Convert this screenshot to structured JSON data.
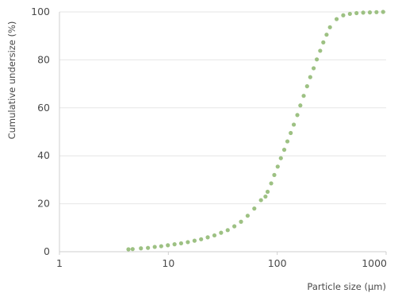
{
  "chart_data": {
    "type": "scatter",
    "title": "",
    "xlabel": "Particle size (μm)",
    "ylabel": "Cumulative undersize (%)",
    "x_scale": "log",
    "xlim": [
      1,
      1000
    ],
    "ylim": [
      0,
      100
    ],
    "x_ticks": [
      1,
      10,
      100,
      1000
    ],
    "x_tick_labels": [
      "1",
      "10",
      "100",
      "1000"
    ],
    "y_ticks": [
      0,
      20,
      40,
      60,
      80,
      100
    ],
    "y_tick_labels": [
      "0",
      "20",
      "40",
      "60",
      "80",
      "100"
    ],
    "grid": {
      "horizontal": true,
      "vertical": false
    },
    "legend": "none",
    "marker_color": "#9dc183",
    "gridline_color": "#e6e6e6",
    "series": [
      {
        "x": [
          4.3,
          4.7,
          5.6,
          6.5,
          7.5,
          8.6,
          9.9,
          11.4,
          13.1,
          15.1,
          17.4,
          20.0,
          23.0,
          26.5,
          30.5,
          35.1,
          40.4,
          46.5,
          53.5,
          61.6,
          70.9,
          78,
          81.6,
          88,
          94,
          101,
          108,
          116,
          124,
          133,
          142,
          153,
          163,
          175,
          188,
          201,
          216,
          231,
          248,
          265,
          284,
          305,
          351,
          404,
          465,
          535,
          616,
          709,
          816,
          939
        ],
        "y": [
          1.0,
          1.1,
          1.4,
          1.6,
          2.0,
          2.3,
          2.7,
          3.1,
          3.5,
          4.0,
          4.6,
          5.2,
          6.0,
          6.8,
          7.9,
          9.0,
          10.6,
          12.5,
          15.0,
          18.0,
          21.5,
          23.0,
          25.0,
          28.5,
          32.0,
          35.5,
          39.0,
          42.5,
          46.0,
          49.5,
          53.0,
          57.0,
          61.0,
          65.0,
          69.0,
          72.8,
          76.5,
          80.2,
          83.8,
          87.3,
          90.5,
          93.6,
          97.0,
          98.6,
          99.2,
          99.5,
          99.7,
          99.8,
          99.9,
          100.0
        ]
      }
    ]
  }
}
